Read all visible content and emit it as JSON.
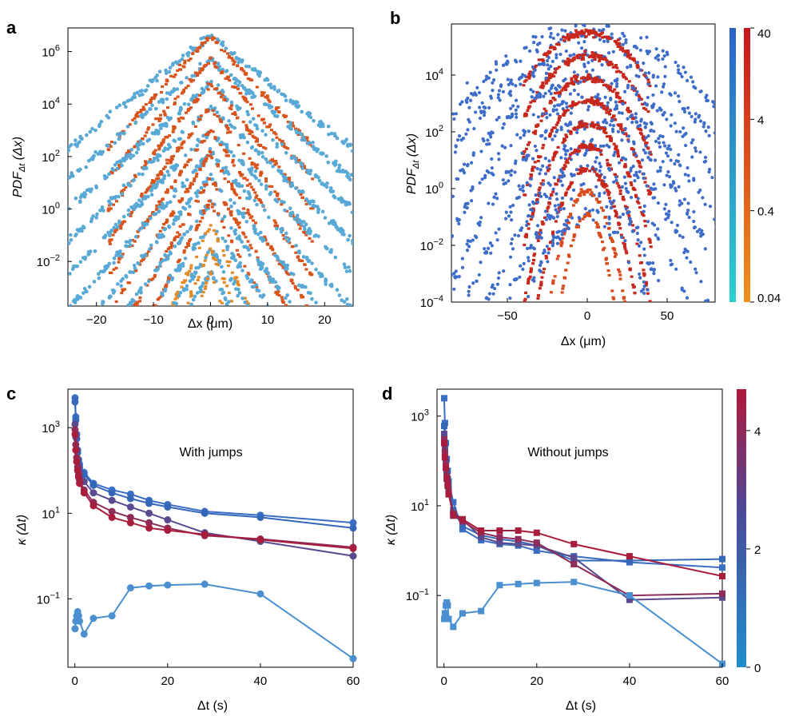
{
  "figure": {
    "panels": {
      "a": {
        "letter": "a"
      },
      "b": {
        "letter": "b"
      },
      "c": {
        "letter": "c",
        "annotation": "With jumps"
      },
      "d": {
        "letter": "d",
        "annotation": "Without jumps"
      }
    }
  },
  "chart_data": [
    {
      "id": "a",
      "type": "scatter",
      "xlabel": "Δx (μm)",
      "ylabel": "PDF_Δt (Δx)",
      "yscale": "log",
      "xlim": [
        -25,
        25
      ],
      "ylim_log10": [
        -3.7,
        6.9
      ],
      "xticks": [
        "−20",
        "−10",
        "0",
        "10",
        "20"
      ],
      "xtick_values": [
        -20,
        -10,
        0,
        10,
        20
      ],
      "yticks": [
        {
          "base": "10",
          "exp": "6",
          "value": 6
        },
        {
          "base": "10",
          "exp": "4",
          "value": 4
        },
        {
          "base": "10",
          "exp": "2",
          "value": 2
        },
        {
          "base": "10",
          "exp": "0",
          "value": 0
        },
        {
          "base": "10",
          "exp": "−2",
          "value": -2
        }
      ],
      "curve_peaks_log10": [
        6.6,
        5.7,
        4.8,
        3.9,
        3.0,
        2.1,
        1.2,
        0.3,
        -0.6,
        -1.5,
        -2.4
      ],
      "colors": {
        "blue_series": "#58a9d6",
        "orange_series": "#d8541c",
        "orange_inner": "#e58a22"
      }
    },
    {
      "id": "b",
      "type": "scatter",
      "xlabel": "Δx (μm)",
      "ylabel": "PDF_Δt (Δx)",
      "yscale": "log",
      "xlim": [
        -85,
        80
      ],
      "ylim_log10": [
        -4,
        5.8
      ],
      "xticks": [
        "−50",
        "0",
        "50"
      ],
      "xtick_values": [
        -50,
        0,
        50
      ],
      "yticks": [
        {
          "base": "10",
          "exp": "4",
          "value": 4
        },
        {
          "base": "10",
          "exp": "2",
          "value": 2
        },
        {
          "base": "10",
          "exp": "0",
          "value": 0
        },
        {
          "base": "10",
          "exp": "−2",
          "value": -2
        },
        {
          "base": "10",
          "exp": "−4",
          "value": -4
        }
      ],
      "curve_peaks_log10": [
        5.5,
        4.7,
        3.9,
        3.1,
        2.3,
        1.5,
        0.7,
        -0.1,
        -0.9
      ],
      "colorbar": {
        "ticks": [
          "40",
          "4",
          "0.4",
          "0.04"
        ],
        "tick_values": [
          40,
          4,
          0.4,
          0.04
        ],
        "scale": "log"
      },
      "colors": {
        "blue_series": "#3d6cc9",
        "red_series": "#c8281c",
        "red_inner": "#d94a1c"
      }
    },
    {
      "id": "c",
      "type": "line",
      "xlabel": "Δt (s)",
      "ylabel": "κ (Δt)",
      "yscale": "log",
      "xlim": [
        -1.5,
        60
      ],
      "ylim_log10": [
        -2.6,
        3.9
      ],
      "xticks": [
        "0",
        "20",
        "40",
        "60"
      ],
      "xtick_values": [
        0,
        20,
        40,
        60
      ],
      "yticks": [
        {
          "base": "10",
          "exp": "3",
          "value": 3
        },
        {
          "base": "10",
          "exp": "1",
          "value": 1
        },
        {
          "base": "10",
          "exp": "−1",
          "value": -1
        }
      ],
      "marker": "circle",
      "x": [
        0.04,
        0.2,
        0.4,
        0.6,
        0.8,
        1,
        2,
        4,
        8,
        12,
        16,
        20,
        28,
        40,
        60
      ],
      "series": [
        {
          "color": "#3a6ec4",
          "values": [
            5000,
            1800,
            700,
            300,
            180,
            140,
            90,
            50,
            35,
            28,
            20,
            16,
            11,
            9,
            6
          ]
        },
        {
          "color": "#3467b8",
          "values": [
            4000,
            1500,
            550,
            260,
            160,
            120,
            80,
            45,
            30,
            22,
            17,
            14,
            10,
            8,
            4.5
          ]
        },
        {
          "color": "#5a4a8f",
          "values": [
            1200,
            600,
            300,
            180,
            120,
            90,
            55,
            30,
            20,
            14,
            10,
            7,
            3.5,
            2.2,
            1.0
          ]
        },
        {
          "color": "#8e2c5a",
          "values": [
            900,
            400,
            200,
            120,
            80,
            60,
            35,
            18,
            11,
            8,
            6,
            4.5,
            3.0,
            2.5,
            1.6
          ]
        },
        {
          "color": "#a81c3c",
          "values": [
            700,
            300,
            160,
            100,
            70,
            50,
            30,
            15,
            8,
            6,
            4.5,
            4,
            3.2,
            2.4,
            1.5
          ]
        },
        {
          "color": "#4a8fd0",
          "values": [
            0.02,
            0.03,
            0.04,
            0.05,
            0.04,
            0.03,
            0.015,
            0.035,
            0.04,
            0.18,
            0.2,
            0.21,
            0.22,
            0.13,
            0.004
          ]
        }
      ],
      "colorbar": null
    },
    {
      "id": "d",
      "type": "line",
      "xlabel": "Δt (s)",
      "ylabel": "κ (Δt)",
      "yscale": "log",
      "xlim": [
        -1.5,
        60
      ],
      "ylim_log10": [
        -2.6,
        3.6
      ],
      "xticks": [
        "0",
        "20",
        "40",
        "60"
      ],
      "xtick_values": [
        0,
        20,
        40,
        60
      ],
      "yticks": [
        {
          "base": "10",
          "exp": "3",
          "value": 3
        },
        {
          "base": "10",
          "exp": "1",
          "value": 1
        },
        {
          "base": "10",
          "exp": "−1",
          "value": -1
        }
      ],
      "marker": "square",
      "x": [
        0.04,
        0.2,
        0.4,
        0.6,
        0.8,
        1,
        2,
        4,
        8,
        12,
        16,
        20,
        28,
        40,
        60
      ],
      "series": [
        {
          "color": "#3a6ec4",
          "values": [
            2500,
            700,
            250,
            110,
            60,
            35,
            12,
            3.0,
            1.7,
            1.4,
            1.3,
            1.0,
            0.75,
            0.55,
            0.42
          ]
        },
        {
          "color": "#3467b8",
          "values": [
            600,
            250,
            100,
            60,
            40,
            25,
            8,
            3.5,
            2.2,
            1.8,
            1.6,
            1.3,
            0.6,
            0.6,
            0.65
          ]
        },
        {
          "color": "#5a4a8f",
          "values": [
            400,
            180,
            90,
            50,
            35,
            22,
            7,
            5,
            2.0,
            1.5,
            1.4,
            1.3,
            0.7,
            0.08,
            0.09
          ]
        },
        {
          "color": "#8e2c5a",
          "values": [
            300,
            150,
            80,
            45,
            30,
            20,
            6,
            4.5,
            2.5,
            2.0,
            1.8,
            1.5,
            0.5,
            0.1,
            0.11
          ]
        },
        {
          "color": "#a81c3c",
          "values": [
            250,
            120,
            70,
            40,
            28,
            18,
            6.5,
            5.0,
            2.8,
            2.8,
            2.8,
            2.5,
            1.4,
            0.75,
            0.27
          ]
        },
        {
          "color": "#4a8fd0",
          "values": [
            0.03,
            0.04,
            0.06,
            0.07,
            0.06,
            0.03,
            0.02,
            0.04,
            0.045,
            0.17,
            0.18,
            0.19,
            0.2,
            0.1,
            0.003
          ]
        }
      ],
      "colorbar": {
        "ticks": [
          "4",
          "2",
          "0"
        ],
        "tick_values": [
          4,
          2,
          0
        ],
        "max": 4.7,
        "min": 0,
        "scale": "linear"
      }
    }
  ]
}
